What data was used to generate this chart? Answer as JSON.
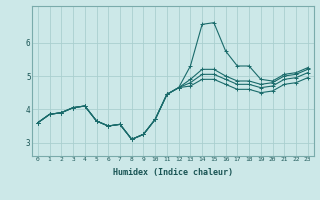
{
  "xlabel": "Humidex (Indice chaleur)",
  "bg_color": "#cce8e8",
  "grid_color": "#aacfcf",
  "line_color": "#1a6b6b",
  "x_values": [
    0,
    1,
    2,
    3,
    4,
    5,
    6,
    7,
    8,
    9,
    10,
    11,
    12,
    13,
    14,
    15,
    16,
    17,
    18,
    19,
    20,
    21,
    22,
    23
  ],
  "line1": [
    3.6,
    3.85,
    3.9,
    4.05,
    4.1,
    3.65,
    3.5,
    3.55,
    3.1,
    3.25,
    3.7,
    4.45,
    4.65,
    5.3,
    6.55,
    6.6,
    5.75,
    5.3,
    5.3,
    4.9,
    4.85,
    5.05,
    5.1,
    5.25
  ],
  "line2": [
    3.6,
    3.85,
    3.9,
    4.05,
    4.1,
    3.65,
    3.5,
    3.55,
    3.1,
    3.25,
    3.7,
    4.45,
    4.65,
    4.9,
    5.2,
    5.2,
    5.0,
    4.85,
    4.85,
    4.75,
    4.8,
    5.0,
    5.05,
    5.2
  ],
  "line3": [
    3.6,
    3.85,
    3.9,
    4.05,
    4.1,
    3.65,
    3.5,
    3.55,
    3.1,
    3.25,
    3.7,
    4.45,
    4.65,
    4.8,
    5.05,
    5.05,
    4.9,
    4.75,
    4.75,
    4.65,
    4.7,
    4.9,
    4.95,
    5.1
  ],
  "line4": [
    3.6,
    3.85,
    3.9,
    4.05,
    4.1,
    3.65,
    3.5,
    3.55,
    3.1,
    3.25,
    3.7,
    4.45,
    4.65,
    4.7,
    4.9,
    4.9,
    4.75,
    4.6,
    4.6,
    4.5,
    4.55,
    4.75,
    4.8,
    4.95
  ],
  "yticks": [
    3,
    4,
    5,
    6
  ],
  "ylim": [
    2.6,
    7.1
  ],
  "xlim": [
    -0.5,
    23.5
  ]
}
